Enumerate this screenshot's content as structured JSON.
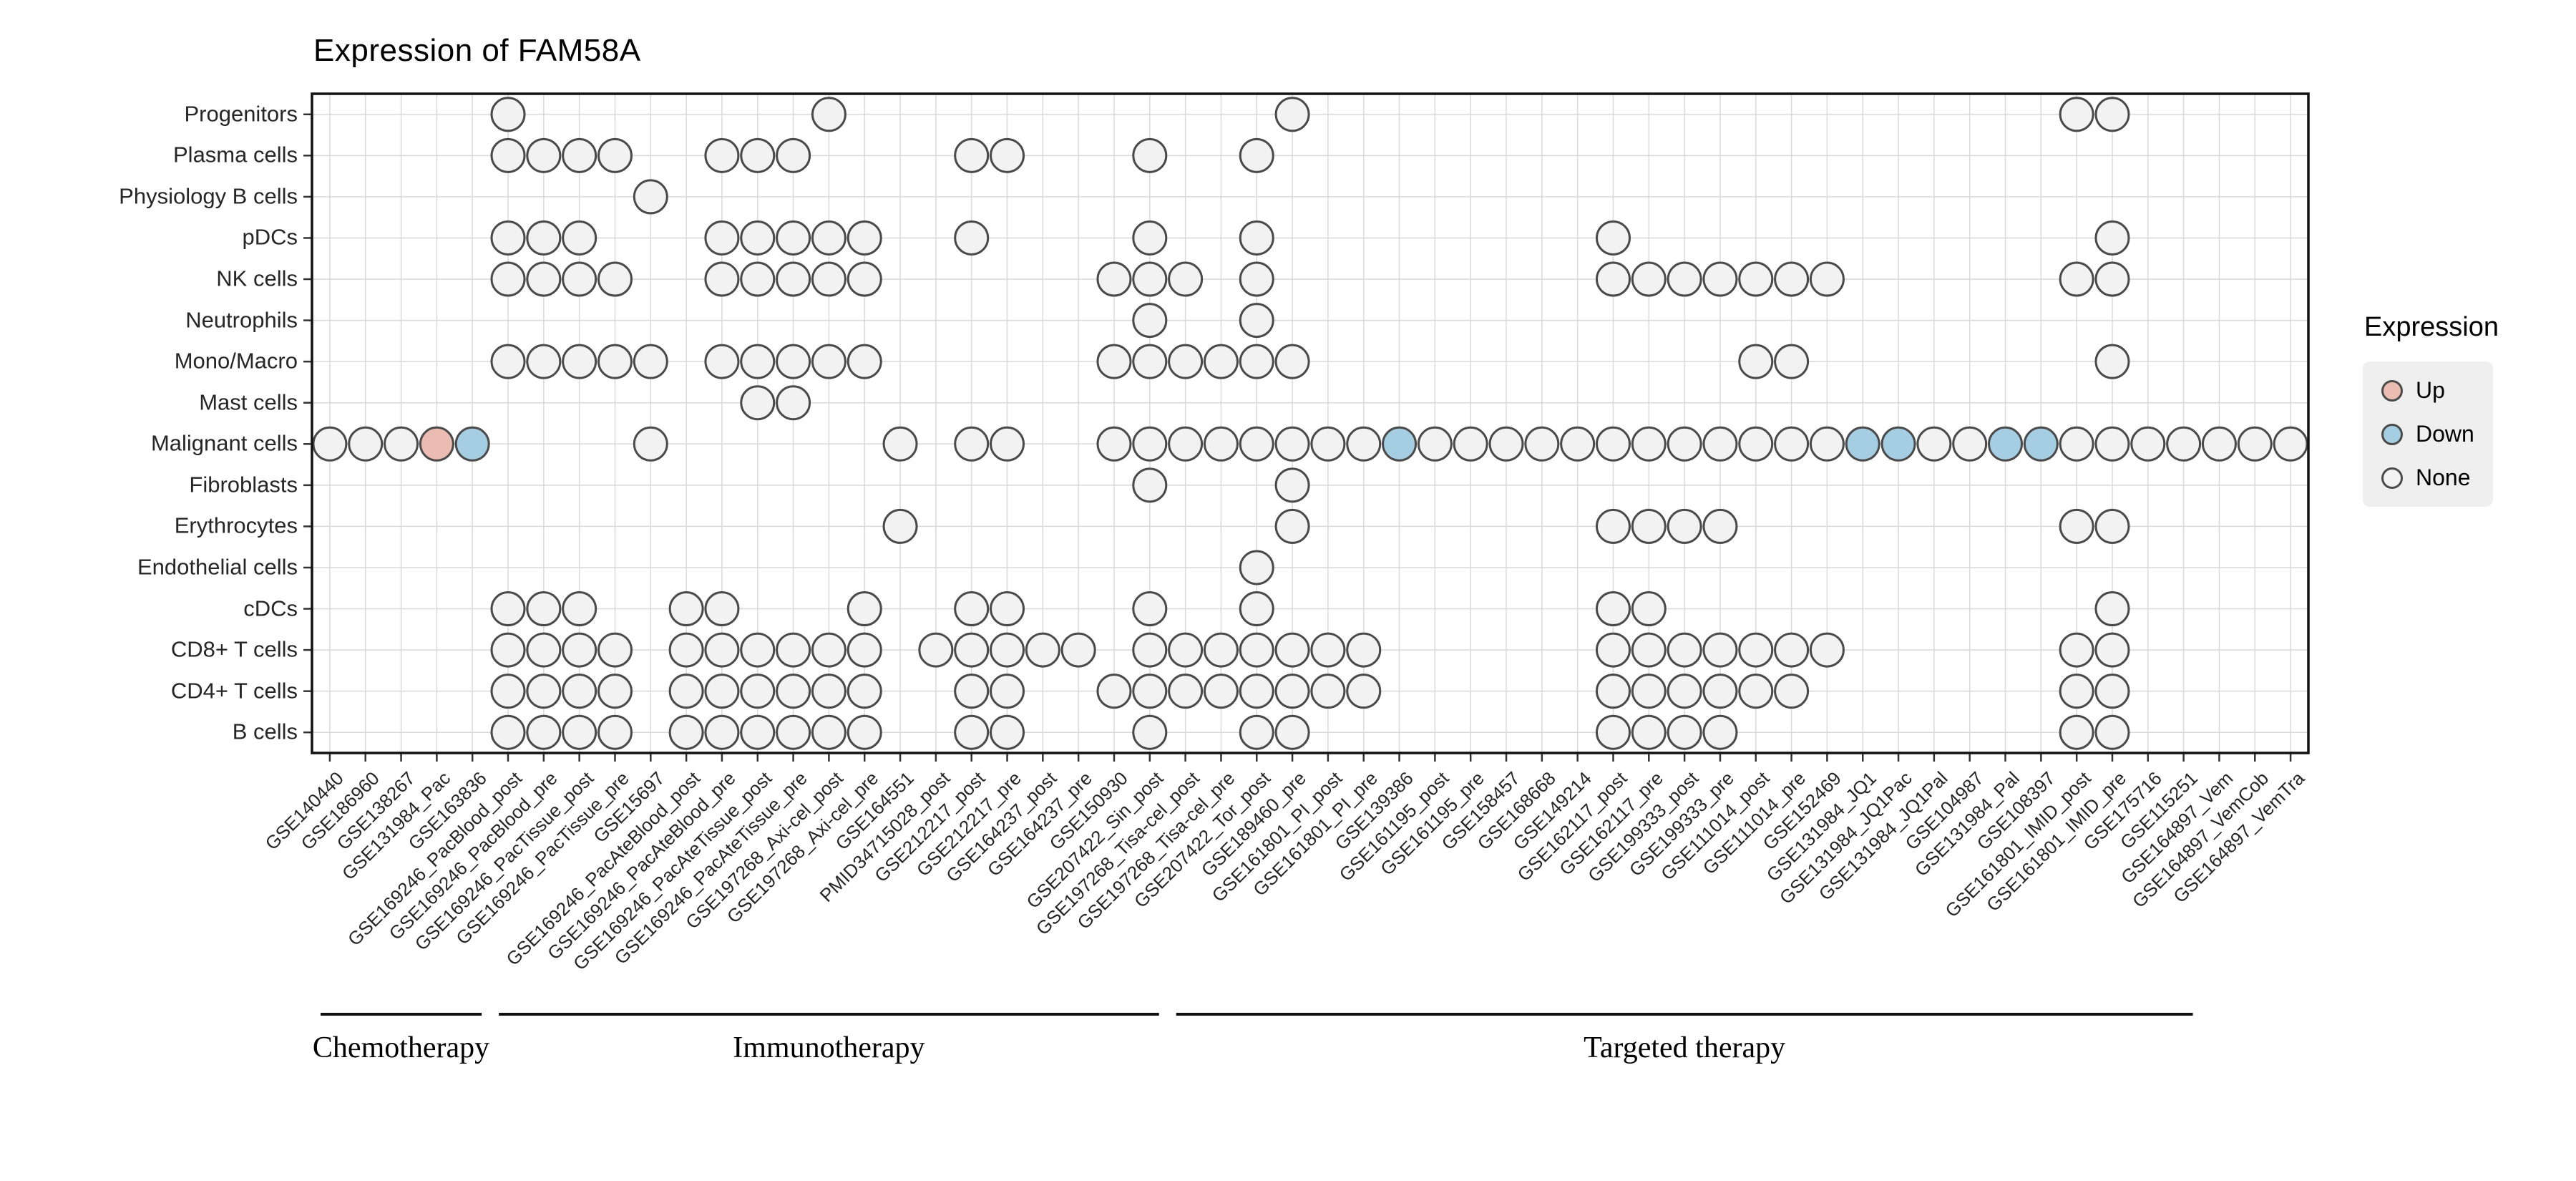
{
  "chart_data": {
    "type": "heatmap",
    "title": "Expression of FAM58A",
    "legend": {
      "title": "Expression",
      "items": [
        {
          "label": "Up",
          "color": "#EBBCB1"
        },
        {
          "label": "Down",
          "color": "#A6CEE3"
        },
        {
          "label": "None",
          "color": "#F2F2F2"
        }
      ]
    },
    "styles": {
      "grid_color": "#D9D9D9",
      "border_color": "#111111",
      "dot_stroke": "#4A4A4A",
      "tick_color": "#333333",
      "state_colors": {
        "up": "#EBBCB1",
        "down": "#A6CEE3",
        "none": "#F2F2F2"
      }
    },
    "y_categories": [
      "Progenitors",
      "Plasma cells",
      "Physiology B cells",
      "pDCs",
      "NK cells",
      "Neutrophils",
      "Mono/Macro",
      "Mast cells",
      "Malignant cells",
      "Fibroblasts",
      "Erythrocytes",
      "Endothelial cells",
      "cDCs",
      "CD8+ T cells",
      "CD4+ T cells",
      "B cells"
    ],
    "x_categories": [
      "GSE140440",
      "GSE186960",
      "GSE138267",
      "GSE131984_Pac",
      "GSE163836",
      "GSE169246_PacBlood_post",
      "GSE169246_PacBlood_pre",
      "GSE169246_PacTissue_post",
      "GSE169246_PacTissue_pre",
      "GSE15697",
      "GSE169246_PacAteBlood_post",
      "GSE169246_PacAteBlood_pre",
      "GSE169246_PacAteTissue_post",
      "GSE169246_PacAteTissue_pre",
      "GSE197268_Axi-cel_post",
      "GSE197268_Axi-cel_pre",
      "GSE164551",
      "PMID34715028_post",
      "GSE212217_post",
      "GSE212217_pre",
      "GSE164237_post",
      "GSE164237_pre",
      "GSE150930",
      "GSE207422_Sin_post",
      "GSE197268_Tisa-cel_post",
      "GSE197268_Tisa-cel_pre",
      "GSE207422_Tor_post",
      "GSE189460_pre",
      "GSE161801_PI_post",
      "GSE161801_PI_pre",
      "GSE139386",
      "GSE161195_post",
      "GSE161195_pre",
      "GSE158457",
      "GSE168668",
      "GSE149214",
      "GSE162117_post",
      "GSE162117_pre",
      "GSE199333_post",
      "GSE199333_pre",
      "GSE111014_post",
      "GSE111014_pre",
      "GSE152469",
      "GSE131984_JQ1",
      "GSE131984_JQ1Pac",
      "GSE131984_JQ1Pal",
      "GSE104987",
      "GSE131984_Pal",
      "GSE108397",
      "GSE161801_IMID_post",
      "GSE161801_IMID_pre",
      "GSE175716",
      "GSE115251",
      "GSE164897_Vem",
      "GSE164897_VemCob",
      "GSE164897_VemTra"
    ],
    "x_groups": [
      {
        "label": "Chemotherapy",
        "start": 0,
        "end": 4
      },
      {
        "label": "Immunotherapy",
        "start": 5,
        "end": 23
      },
      {
        "label": "Targeted therapy",
        "start": 24,
        "end": 52
      }
    ],
    "cells": [
      {
        "row": "Progenitors",
        "none": [
          5,
          14,
          27,
          49,
          50
        ],
        "up": [],
        "down": []
      },
      {
        "row": "Plasma cells",
        "none": [
          5,
          6,
          7,
          8,
          11,
          12,
          13,
          18,
          19,
          23,
          26
        ],
        "up": [],
        "down": []
      },
      {
        "row": "Physiology B cells",
        "none": [
          9
        ],
        "up": [],
        "down": []
      },
      {
        "row": "pDCs",
        "none": [
          5,
          6,
          7,
          11,
          12,
          13,
          14,
          15,
          18,
          23,
          26,
          36,
          50
        ],
        "up": [],
        "down": []
      },
      {
        "row": "NK cells",
        "none": [
          5,
          6,
          7,
          8,
          11,
          12,
          13,
          14,
          15,
          22,
          23,
          24,
          26,
          36,
          37,
          38,
          39,
          40,
          41,
          42,
          49,
          50
        ],
        "up": [],
        "down": []
      },
      {
        "row": "Neutrophils",
        "none": [
          23,
          26
        ],
        "up": [],
        "down": []
      },
      {
        "row": "Mono/Macro",
        "none": [
          5,
          6,
          7,
          8,
          9,
          11,
          12,
          13,
          14,
          15,
          22,
          23,
          24,
          25,
          26,
          27,
          40,
          41,
          50
        ],
        "up": [],
        "down": []
      },
      {
        "row": "Mast cells",
        "none": [
          12,
          13
        ],
        "up": [],
        "down": []
      },
      {
        "row": "Malignant cells",
        "none": [
          0,
          1,
          2,
          9,
          16,
          18,
          19,
          22,
          23,
          24,
          25,
          26,
          27,
          28,
          29,
          31,
          32,
          33,
          34,
          35,
          36,
          37,
          38,
          39,
          40,
          41,
          42,
          45,
          46,
          49,
          50,
          51,
          52,
          53,
          54,
          55
        ],
        "up": [
          3
        ],
        "down": [
          4,
          30,
          43,
          44,
          47,
          48
        ]
      },
      {
        "row": "Fibroblasts",
        "none": [
          23,
          27
        ],
        "up": [],
        "down": []
      },
      {
        "row": "Erythrocytes",
        "none": [
          16,
          27,
          36,
          37,
          38,
          39,
          49,
          50
        ],
        "up": [],
        "down": []
      },
      {
        "row": "Endothelial cells",
        "none": [
          26
        ],
        "up": [],
        "down": []
      },
      {
        "row": "cDCs",
        "none": [
          5,
          6,
          7,
          10,
          11,
          15,
          18,
          19,
          23,
          26,
          36,
          37,
          50
        ],
        "up": [],
        "down": []
      },
      {
        "row": "CD8+ T cells",
        "none": [
          5,
          6,
          7,
          8,
          10,
          11,
          12,
          13,
          14,
          15,
          17,
          18,
          19,
          20,
          21,
          23,
          24,
          25,
          26,
          27,
          28,
          29,
          36,
          37,
          38,
          39,
          40,
          41,
          42,
          49,
          50
        ],
        "up": [],
        "down": []
      },
      {
        "row": "CD4+ T cells",
        "none": [
          5,
          6,
          7,
          8,
          10,
          11,
          12,
          13,
          14,
          15,
          18,
          19,
          22,
          23,
          24,
          25,
          26,
          27,
          28,
          29,
          36,
          37,
          38,
          39,
          40,
          41,
          49,
          50
        ],
        "up": [],
        "down": []
      },
      {
        "row": "B cells",
        "none": [
          5,
          6,
          7,
          8,
          10,
          11,
          12,
          13,
          14,
          15,
          18,
          19,
          23,
          26,
          27,
          36,
          37,
          38,
          39,
          49,
          50
        ],
        "up": [],
        "down": []
      }
    ]
  }
}
